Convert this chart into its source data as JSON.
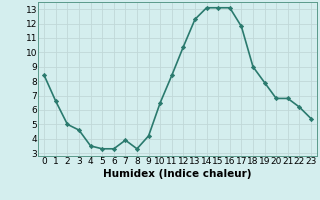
{
  "x": [
    0,
    1,
    2,
    3,
    4,
    5,
    6,
    7,
    8,
    9,
    10,
    11,
    12,
    13,
    14,
    15,
    16,
    17,
    18,
    19,
    20,
    21,
    22,
    23
  ],
  "y": [
    8.4,
    6.6,
    5.0,
    4.6,
    3.5,
    3.3,
    3.3,
    3.9,
    3.3,
    4.2,
    6.5,
    8.4,
    10.4,
    12.3,
    13.1,
    13.1,
    13.1,
    11.8,
    9.0,
    7.9,
    6.8,
    6.8,
    6.2,
    5.4
  ],
  "line_color": "#2a7a6e",
  "marker": "D",
  "markersize": 2.2,
  "linewidth": 1.2,
  "xlabel": "Humidex (Indice chaleur)",
  "xlabel_fontsize": 7.5,
  "xlim": [
    -0.5,
    23.5
  ],
  "ylim": [
    2.8,
    13.5
  ],
  "yticks": [
    3,
    4,
    5,
    6,
    7,
    8,
    9,
    10,
    11,
    12,
    13
  ],
  "xticks": [
    0,
    1,
    2,
    3,
    4,
    5,
    6,
    7,
    8,
    9,
    10,
    11,
    12,
    13,
    14,
    15,
    16,
    17,
    18,
    19,
    20,
    21,
    22,
    23
  ],
  "background_color": "#d4eeee",
  "grid_color": "#c0d8d8",
  "tick_fontsize": 6.5,
  "spine_color": "#5a9a8a"
}
